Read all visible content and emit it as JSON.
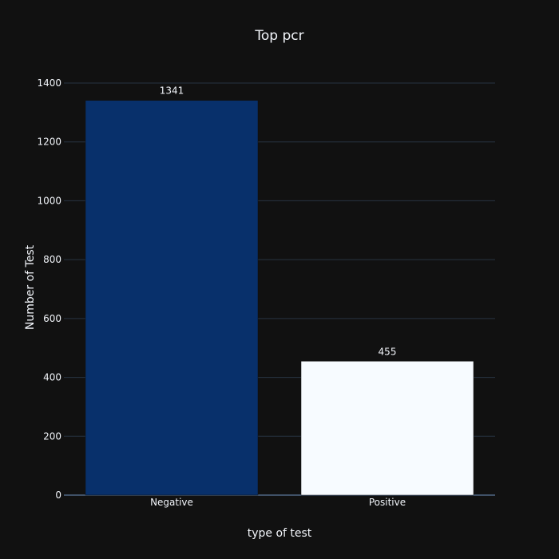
{
  "chart_data": {
    "type": "bar",
    "title": "Top pcr",
    "xlabel": "type of test",
    "ylabel": "Number of Test",
    "categories": [
      "Negative",
      "Positive"
    ],
    "values": [
      1341,
      455
    ],
    "value_labels": [
      "1341",
      "455"
    ],
    "bar_colors": [
      "#08306b",
      "#f7fbff"
    ],
    "ylim": [
      0,
      1400
    ],
    "yticks": [
      0,
      200,
      400,
      600,
      800,
      1000,
      1200,
      1400
    ],
    "ytick_labels": [
      "0",
      "200",
      "400",
      "600",
      "800",
      "1000",
      "1200",
      "1400"
    ],
    "grid": true,
    "legend": "none"
  },
  "colors": {
    "background": "#111111",
    "text": "#f2f5fa",
    "grid": "#283442",
    "zeroline": "#506784"
  }
}
